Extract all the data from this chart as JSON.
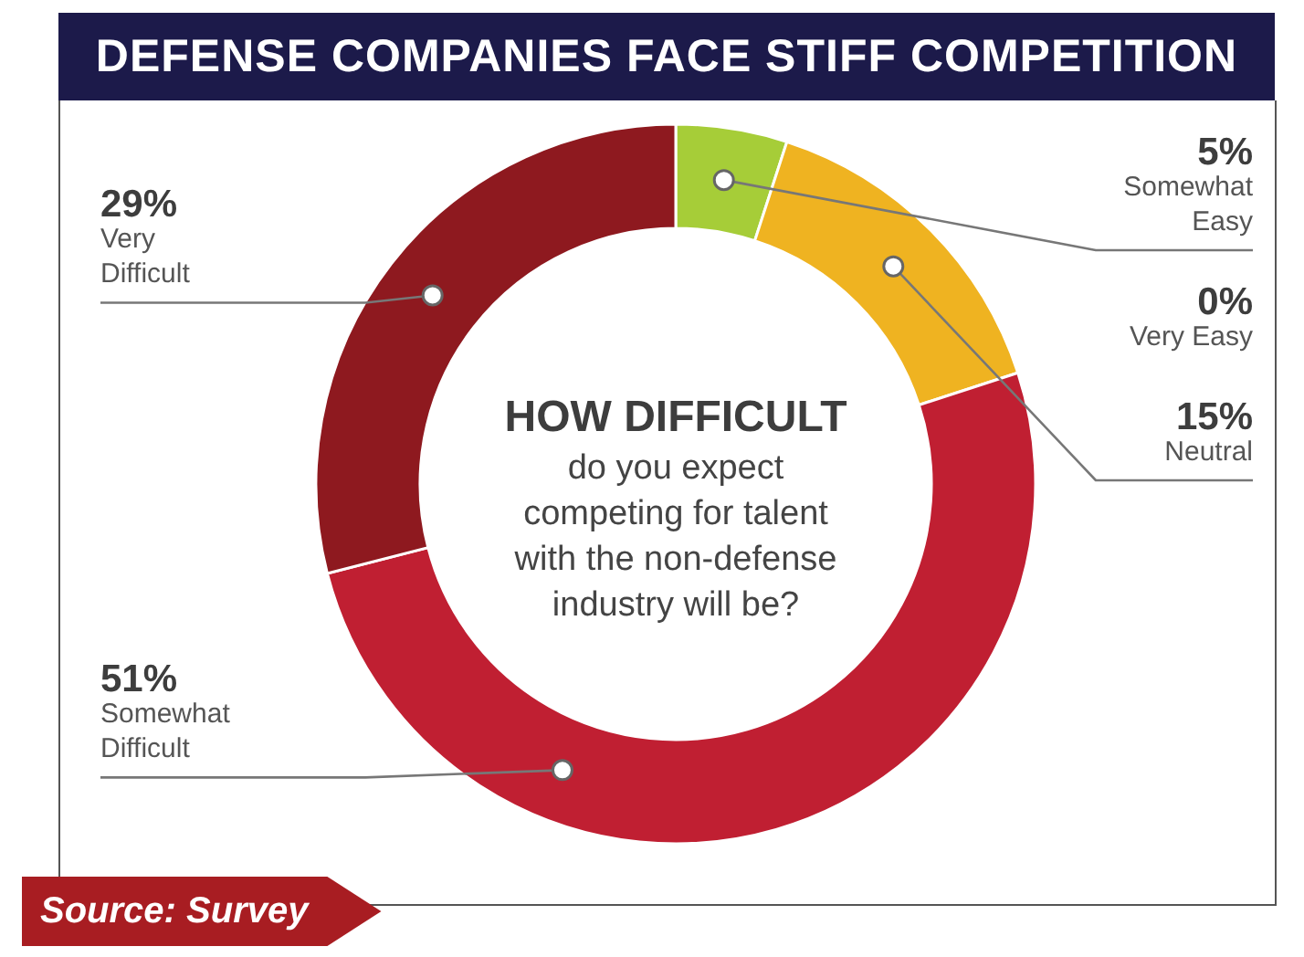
{
  "chart_data": {
    "type": "donut",
    "title": "DEFENSE COMPANIES FACE STIFF COMPETITION",
    "categories": [
      "Very Easy",
      "Somewhat Easy",
      "Neutral",
      "Somewhat Difficult",
      "Very Difficult"
    ],
    "values": [
      0,
      5,
      15,
      51,
      29
    ],
    "colors": [
      "#7fb13f",
      "#a6cd38",
      "#efb321",
      "#c01f32",
      "#8e191f"
    ],
    "value_labels": [
      "0%",
      "5%",
      "15%",
      "51%",
      "29%"
    ],
    "annotations": [
      "HOW DIFFICULT",
      "do you expect competing for talent with the non-defense industry will be?",
      "Source: Survey"
    ]
  }
}
